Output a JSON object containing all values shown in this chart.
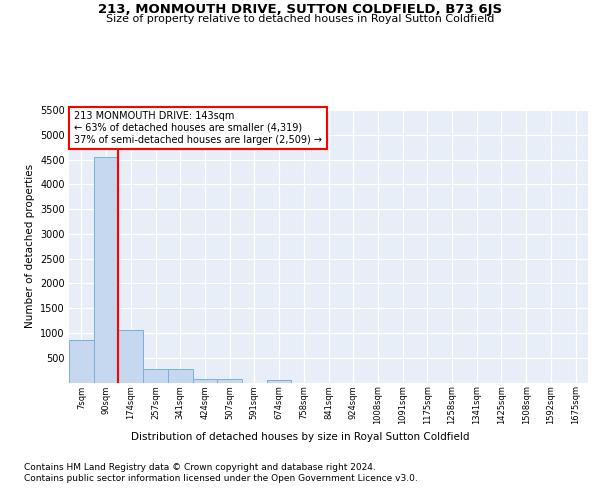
{
  "title": "213, MONMOUTH DRIVE, SUTTON COLDFIELD, B73 6JS",
  "subtitle": "Size of property relative to detached houses in Royal Sutton Coldfield",
  "xlabel": "Distribution of detached houses by size in Royal Sutton Coldfield",
  "ylabel": "Number of detached properties",
  "footer_line1": "Contains HM Land Registry data © Crown copyright and database right 2024.",
  "footer_line2": "Contains public sector information licensed under the Open Government Licence v3.0.",
  "annotation_line1": "213 MONMOUTH DRIVE: 143sqm",
  "annotation_line2": "← 63% of detached houses are smaller (4,319)",
  "annotation_line3": "37% of semi-detached houses are larger (2,509) →",
  "bar_labels": [
    "7sqm",
    "90sqm",
    "174sqm",
    "257sqm",
    "341sqm",
    "424sqm",
    "507sqm",
    "591sqm",
    "674sqm",
    "758sqm",
    "841sqm",
    "924sqm",
    "1008sqm",
    "1091sqm",
    "1175sqm",
    "1258sqm",
    "1341sqm",
    "1425sqm",
    "1508sqm",
    "1592sqm",
    "1675sqm"
  ],
  "bar_values": [
    850,
    4550,
    1050,
    270,
    270,
    80,
    80,
    0,
    60,
    0,
    0,
    0,
    0,
    0,
    0,
    0,
    0,
    0,
    0,
    0,
    0
  ],
  "bar_color": "#c5d8f0",
  "bar_edge_color": "#7aafd4",
  "bg_color": "#e8eef8",
  "grid_color": "#ffffff",
  "ylim": [
    0,
    5500
  ],
  "yticks": [
    0,
    500,
    1000,
    1500,
    2000,
    2500,
    3000,
    3500,
    4000,
    4500,
    5000,
    5500
  ]
}
